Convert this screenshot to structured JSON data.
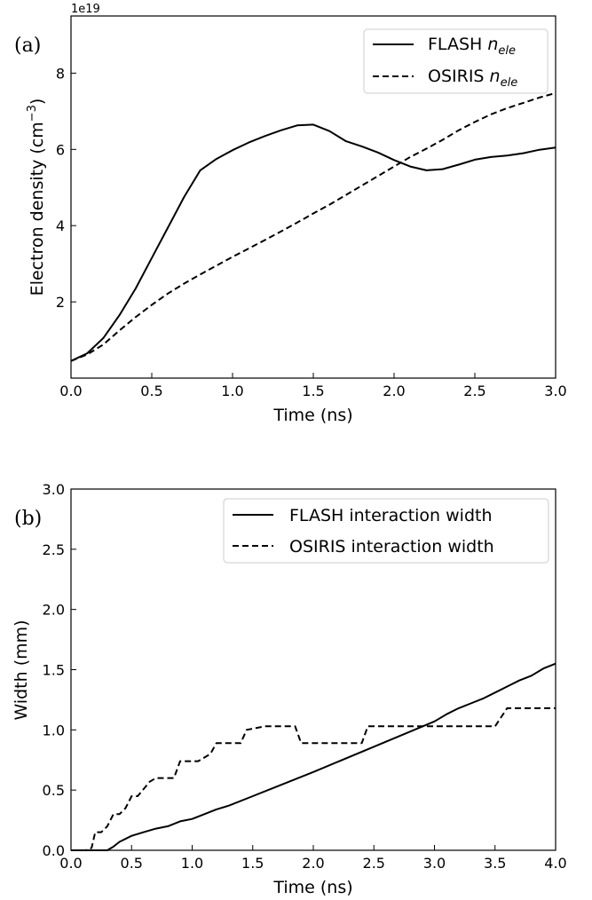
{
  "chart_data": [
    {
      "type": "line",
      "panel_label": "(a)",
      "offset_text": "1e19",
      "xlabel": "Time (ns)",
      "ylabel_main": "Electron density (cm",
      "ylabel_sup": "−3",
      "ylabel_close": ")",
      "xlim": [
        0.0,
        3.0
      ],
      "ylim": [
        0.0,
        9.5
      ],
      "xticks": [
        "0.0",
        "0.5",
        "1.0",
        "1.5",
        "2.0",
        "2.5",
        "3.0"
      ],
      "yticks": [
        "2",
        "4",
        "6",
        "8"
      ],
      "grid": false,
      "legend_position": "top-right",
      "series": [
        {
          "name_main": "FLASH ",
          "name_math_base": "n",
          "name_math_sub": "ele",
          "style": "solid",
          "color": "#000000",
          "x": [
            0.0,
            0.1,
            0.2,
            0.3,
            0.4,
            0.5,
            0.6,
            0.7,
            0.8,
            0.9,
            1.0,
            1.1,
            1.2,
            1.3,
            1.4,
            1.5,
            1.6,
            1.7,
            1.8,
            1.9,
            2.0,
            2.1,
            2.2,
            2.3,
            2.4,
            2.5,
            2.6,
            2.7,
            2.8,
            2.9,
            3.0
          ],
          "y": [
            0.45,
            0.65,
            1.05,
            1.65,
            2.35,
            3.15,
            3.95,
            4.75,
            5.45,
            5.75,
            5.98,
            6.18,
            6.35,
            6.5,
            6.63,
            6.65,
            6.48,
            6.22,
            6.08,
            5.92,
            5.72,
            5.55,
            5.45,
            5.48,
            5.6,
            5.73,
            5.8,
            5.84,
            5.9,
            5.99,
            6.05
          ]
        },
        {
          "name_main": "OSIRIS ",
          "name_math_base": "n",
          "name_math_sub": "ele",
          "style": "dashed",
          "color": "#000000",
          "x": [
            0.0,
            0.1,
            0.2,
            0.3,
            0.4,
            0.5,
            0.6,
            0.7,
            0.8,
            0.9,
            1.0,
            1.1,
            1.2,
            1.3,
            1.4,
            1.5,
            1.6,
            1.7,
            1.8,
            1.9,
            2.0,
            2.1,
            2.2,
            2.3,
            2.4,
            2.5,
            2.6,
            2.7,
            2.8,
            2.9,
            3.0
          ],
          "y": [
            0.45,
            0.62,
            0.88,
            1.25,
            1.6,
            1.92,
            2.22,
            2.48,
            2.72,
            2.95,
            3.18,
            3.4,
            3.62,
            3.85,
            4.08,
            4.32,
            4.55,
            4.8,
            5.05,
            5.3,
            5.55,
            5.8,
            6.02,
            6.25,
            6.5,
            6.72,
            6.92,
            7.08,
            7.22,
            7.36,
            7.48
          ]
        }
      ]
    },
    {
      "type": "line",
      "panel_label": "(b)",
      "xlabel": "Time (ns)",
      "ylabel": "Width (mm)",
      "xlim": [
        0.0,
        4.0
      ],
      "ylim": [
        0.0,
        3.0
      ],
      "xticks": [
        "0.0",
        "0.5",
        "1.0",
        "1.5",
        "2.0",
        "2.5",
        "3.0",
        "3.5",
        "4.0"
      ],
      "yticks": [
        "0.0",
        "0.5",
        "1.0",
        "1.5",
        "2.0",
        "2.5",
        "3.0"
      ],
      "grid": false,
      "legend_position": "top-right",
      "series": [
        {
          "name": "FLASH interaction width",
          "style": "solid",
          "color": "#000000",
          "x": [
            0.0,
            0.3,
            0.35,
            0.4,
            0.5,
            0.6,
            0.7,
            0.8,
            0.9,
            1.0,
            1.1,
            1.2,
            1.3,
            1.5,
            2.0,
            2.5,
            3.0,
            3.1,
            3.2,
            3.3,
            3.4,
            3.5,
            3.6,
            3.7,
            3.8,
            3.9,
            4.0
          ],
          "y": [
            0.0,
            0.0,
            0.03,
            0.07,
            0.12,
            0.15,
            0.18,
            0.2,
            0.24,
            0.26,
            0.3,
            0.34,
            0.37,
            0.45,
            0.65,
            0.86,
            1.07,
            1.13,
            1.18,
            1.22,
            1.26,
            1.31,
            1.36,
            1.41,
            1.45,
            1.51,
            1.55
          ]
        },
        {
          "name": "OSIRIS interaction width",
          "style": "dashed",
          "color": "#000000",
          "x": [
            0.0,
            0.12,
            0.17,
            0.2,
            0.25,
            0.3,
            0.35,
            0.4,
            0.45,
            0.5,
            0.55,
            0.65,
            0.7,
            0.85,
            0.9,
            1.0,
            1.05,
            1.15,
            1.2,
            1.4,
            1.45,
            1.6,
            1.85,
            1.9,
            2.4,
            2.45,
            3.5,
            3.6,
            4.0
          ],
          "y": [
            0.0,
            0.0,
            0.02,
            0.15,
            0.15,
            0.2,
            0.3,
            0.3,
            0.35,
            0.45,
            0.45,
            0.57,
            0.6,
            0.6,
            0.74,
            0.74,
            0.74,
            0.8,
            0.89,
            0.89,
            1.0,
            1.03,
            1.03,
            0.89,
            0.89,
            1.03,
            1.03,
            1.18,
            1.18
          ]
        }
      ]
    }
  ]
}
